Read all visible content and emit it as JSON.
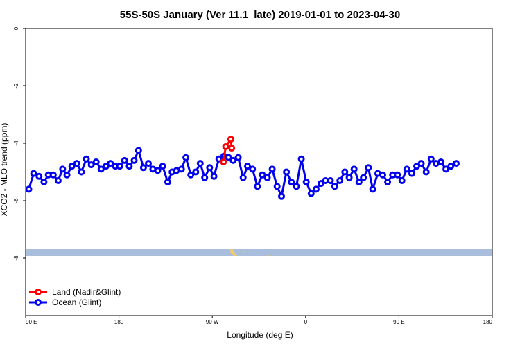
{
  "chart_data": {
    "type": "line",
    "title": "55S-50S January (Ver 11.1_late)   2019-01-01 to 2023-04-30",
    "xlabel": "Longitude (deg E)",
    "ylabel": "XCO2 - MLO trend (ppm)",
    "xlim": [
      90,
      450
    ],
    "ylim": [
      0,
      -10
    ],
    "x_ticks": [
      {
        "value": 90,
        "label": "90 E"
      },
      {
        "value": 162,
        "label": "180"
      },
      {
        "value": 234,
        "label": "90 W"
      },
      {
        "value": 306,
        "label": "0"
      },
      {
        "value": 378,
        "label": "90 E"
      },
      {
        "value": 450,
        "label": "180"
      }
    ],
    "y_ticks": [
      {
        "value": 0,
        "label": "0"
      },
      {
        "value": -2,
        "label": "-2"
      },
      {
        "value": -4,
        "label": "-4"
      },
      {
        "value": -6,
        "label": "-6"
      },
      {
        "value": -8,
        "label": "-8"
      }
    ],
    "grid": false,
    "legend_position": "bottom-left",
    "series": [
      {
        "name": "Land (Nadir&Glint)",
        "color": "#ff0000",
        "points": [
          [
            242.6,
            -4.65
          ],
          [
            244.3,
            -4.12
          ],
          [
            248.3,
            -3.86
          ],
          [
            249.0,
            -4.17
          ]
        ]
      },
      {
        "name": "Ocean (Glint)",
        "color": "#0000ee",
        "points": [
          [
            92.4,
            -5.6
          ],
          [
            96.2,
            -5.05
          ],
          [
            100.3,
            -5.15
          ],
          [
            104.1,
            -5.35
          ],
          [
            107.5,
            -5.1
          ],
          [
            111.3,
            -5.1
          ],
          [
            115.1,
            -5.3
          ],
          [
            118.5,
            -4.9
          ],
          [
            121.9,
            -5.1
          ],
          [
            125.7,
            -4.8
          ],
          [
            129.5,
            -4.7
          ],
          [
            133.0,
            -5.0
          ],
          [
            136.8,
            -4.55
          ],
          [
            140.6,
            -4.75
          ],
          [
            144.4,
            -4.65
          ],
          [
            148.2,
            -4.9
          ],
          [
            152.0,
            -4.8
          ],
          [
            155.4,
            -4.7
          ],
          [
            159.2,
            -4.8
          ],
          [
            162.6,
            -4.8
          ],
          [
            166.4,
            -4.6
          ],
          [
            169.9,
            -4.8
          ],
          [
            173.7,
            -4.6
          ],
          [
            177.1,
            -4.25
          ],
          [
            180.9,
            -4.85
          ],
          [
            184.7,
            -4.7
          ],
          [
            188.1,
            -4.9
          ],
          [
            191.9,
            -4.95
          ],
          [
            195.7,
            -4.8
          ],
          [
            199.6,
            -5.35
          ],
          [
            203.0,
            -5.0
          ],
          [
            206.4,
            -4.95
          ],
          [
            210.2,
            -4.9
          ],
          [
            213.6,
            -4.5
          ],
          [
            217.4,
            -5.1
          ],
          [
            221.2,
            -5.0
          ],
          [
            224.7,
            -4.7
          ],
          [
            228.1,
            -5.2
          ],
          [
            231.9,
            -4.85
          ],
          [
            235.3,
            -5.15
          ],
          [
            239.1,
            -4.55
          ],
          [
            242.9,
            -4.45
          ],
          [
            246.7,
            -4.5
          ],
          [
            250.1,
            -4.6
          ],
          [
            254.0,
            -4.5
          ],
          [
            257.8,
            -5.2
          ],
          [
            261.2,
            -4.8
          ],
          [
            265.0,
            -4.9
          ],
          [
            268.8,
            -5.5
          ],
          [
            272.6,
            -5.1
          ],
          [
            276.4,
            -5.2
          ],
          [
            280.2,
            -4.9
          ],
          [
            284.0,
            -5.5
          ],
          [
            287.4,
            -5.85
          ],
          [
            291.2,
            -5.0
          ],
          [
            295.0,
            -5.35
          ],
          [
            298.9,
            -5.5
          ],
          [
            302.7,
            -4.55
          ],
          [
            306.5,
            -5.35
          ],
          [
            310.3,
            -5.75
          ],
          [
            314.1,
            -5.6
          ],
          [
            317.9,
            -5.4
          ],
          [
            321.3,
            -5.3
          ],
          [
            325.1,
            -5.3
          ],
          [
            328.5,
            -5.5
          ],
          [
            332.4,
            -5.3
          ],
          [
            336.2,
            -5.0
          ],
          [
            339.6,
            -5.2
          ],
          [
            343.4,
            -4.9
          ],
          [
            347.2,
            -5.35
          ],
          [
            350.6,
            -5.2
          ],
          [
            354.4,
            -4.85
          ],
          [
            357.8,
            -5.6
          ],
          [
            361.7,
            -5.05
          ],
          [
            365.5,
            -5.1
          ],
          [
            369.3,
            -5.35
          ],
          [
            373.1,
            -5.1
          ],
          [
            376.9,
            -5.1
          ],
          [
            380.3,
            -5.3
          ],
          [
            384.1,
            -4.9
          ],
          [
            387.9,
            -5.05
          ],
          [
            391.7,
            -4.8
          ],
          [
            395.2,
            -4.7
          ],
          [
            399.0,
            -5.0
          ],
          [
            402.8,
            -4.55
          ],
          [
            406.6,
            -4.7
          ],
          [
            410.4,
            -4.65
          ],
          [
            414.2,
            -4.9
          ],
          [
            418.0,
            -4.8
          ],
          [
            422.2,
            -4.7
          ]
        ]
      }
    ]
  }
}
